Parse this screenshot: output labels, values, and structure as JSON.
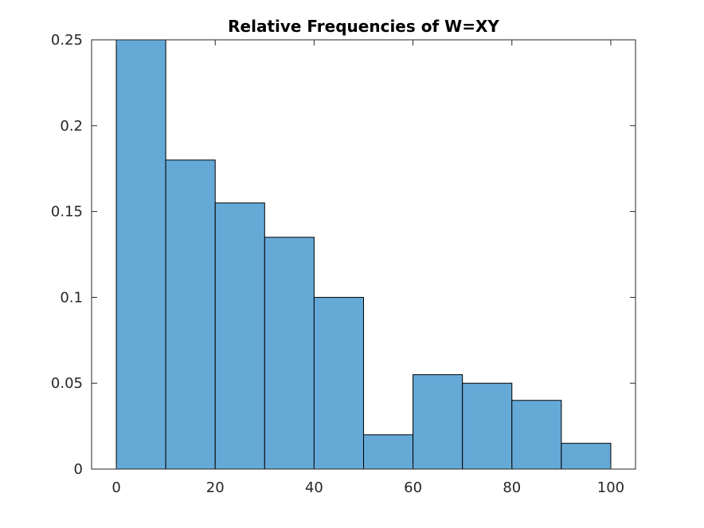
{
  "chart_data": {
    "type": "bar",
    "title": "Relative Frequencies of W=XY",
    "xlabel": "",
    "ylabel": "",
    "bin_edges": [
      0,
      10,
      20,
      30,
      40,
      50,
      60,
      70,
      80,
      90,
      100
    ],
    "values": [
      0.25,
      0.18,
      0.155,
      0.135,
      0.1,
      0.02,
      0.055,
      0.05,
      0.04,
      0.015
    ],
    "xlim": [
      -5,
      105
    ],
    "ylim": [
      0,
      0.25
    ],
    "xticks": [
      0,
      20,
      40,
      60,
      80,
      100
    ],
    "xtick_labels": [
      "0",
      "20",
      "40",
      "60",
      "80",
      "100"
    ],
    "yticks": [
      0,
      0.05,
      0.1,
      0.15,
      0.2,
      0.25
    ],
    "ytick_labels": [
      "0",
      "0.05",
      "0.1",
      "0.15",
      "0.2",
      "0.25"
    ],
    "bar_color": "#65a9d7",
    "edge_color": "#000000",
    "axis_color": "#262626",
    "grid": false,
    "box": true
  }
}
